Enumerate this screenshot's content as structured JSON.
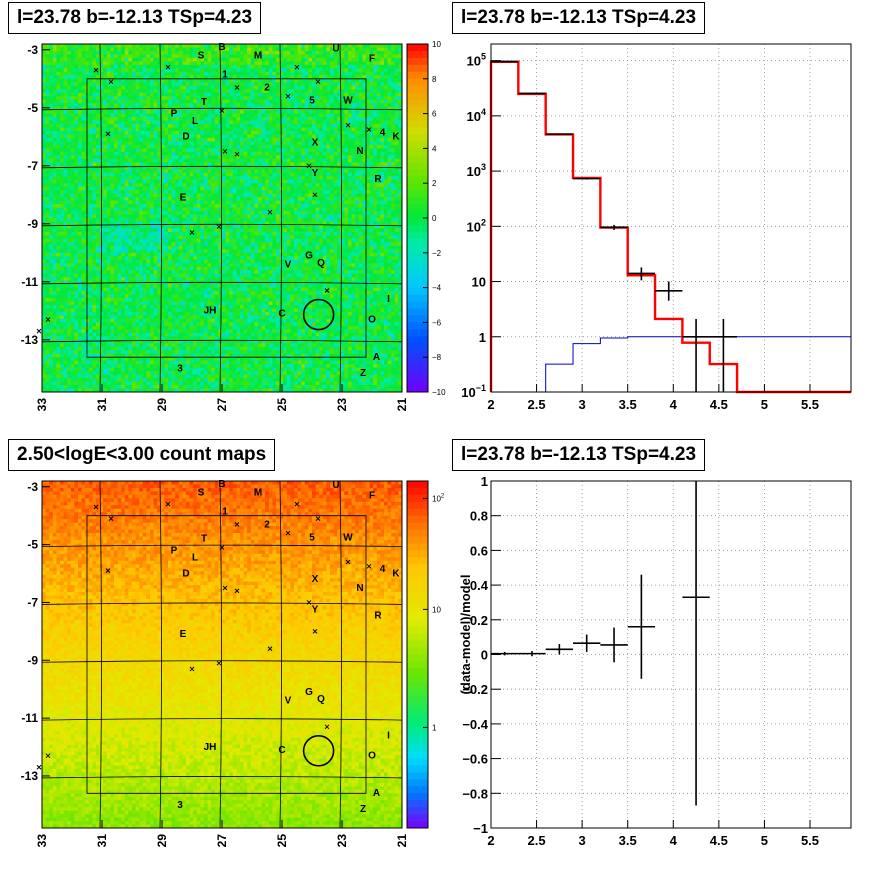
{
  "panels": {
    "top_left_title": "l=23.78 b=-12.13 TSp=4.23",
    "top_right_title": "l=23.78 b=-12.13 TSp=4.23",
    "bottom_left_title": "2.50<logE<3.00 count maps",
    "bottom_right_title": "l=23.78 b=-12.13 TSp=4.23"
  },
  "chart_data": [
    {
      "type": "heatmap",
      "id": "residual-map",
      "title": "l=23.78 b=-12.13 TSp=4.23",
      "x_ticks": [
        "33",
        "31",
        "29",
        "27",
        "25",
        "23",
        "21"
      ],
      "y_ticks": [
        "-3",
        "-5",
        "-7",
        "-9",
        "-11",
        "-13"
      ],
      "xlim": [
        33,
        21
      ],
      "ylim": [
        -14.8,
        -2.8
      ],
      "colorbar": {
        "ticks": [
          "10",
          "8",
          "6",
          "4",
          "2",
          "0",
          "−2",
          "−4",
          "−6",
          "−8",
          "−10"
        ],
        "range": [
          -10,
          10
        ],
        "scale": "linear"
      },
      "circle": {
        "l": 23.78,
        "b": -12.13,
        "radius_deg": 0.5
      },
      "grid": true
    },
    {
      "type": "line",
      "id": "spectrum",
      "title": "l=23.78 b=-12.13 TSp=4.23",
      "y_scale": "log",
      "xlim": [
        2,
        5.95
      ],
      "ylim": [
        0.1,
        200000
      ],
      "x_ticks": [
        "2",
        "2.5",
        "3",
        "3.5",
        "4",
        "4.5",
        "5",
        "5.5"
      ],
      "y_ticks": [
        "10^5",
        "10^4",
        "10^3",
        "10^2",
        "10",
        "1",
        "10^-1"
      ],
      "grid": true,
      "model_total": {
        "color": "#ff0000",
        "edges": [
          2.0,
          2.3,
          2.6,
          2.9,
          3.2,
          3.5,
          3.8,
          4.1,
          4.4,
          4.7,
          5.95
        ],
        "values": [
          95000,
          25000,
          4600,
          750,
          95,
          13,
          2.1,
          0.78,
          0.32,
          0.1
        ]
      },
      "source_model": {
        "color": "#0000cc",
        "edges": [
          2.6,
          2.9,
          3.2,
          3.5,
          5.95
        ],
        "values": [
          0.32,
          0.75,
          0.95,
          1.0
        ]
      },
      "data_points": [
        {
          "x": 2.15,
          "xerr": 0.15,
          "y": 96000,
          "ylo": 95000,
          "yhi": 97000
        },
        {
          "x": 2.45,
          "xerr": 0.15,
          "y": 25500,
          "ylo": 25000,
          "yhi": 26000
        },
        {
          "x": 2.75,
          "xerr": 0.15,
          "y": 4650,
          "ylo": 4500,
          "yhi": 4800
        },
        {
          "x": 3.05,
          "xerr": 0.15,
          "y": 730,
          "ylo": 700,
          "yhi": 760
        },
        {
          "x": 3.35,
          "xerr": 0.15,
          "y": 96,
          "ylo": 86,
          "yhi": 106
        },
        {
          "x": 3.65,
          "xerr": 0.15,
          "y": 14,
          "ylo": 10.5,
          "yhi": 18
        },
        {
          "x": 3.95,
          "xerr": 0.15,
          "y": 6.8,
          "ylo": 4.5,
          "yhi": 10
        },
        {
          "x": 4.25,
          "xerr": 0.15,
          "y": 1,
          "ylo": 0.1,
          "yhi": 2.1
        },
        {
          "x": 4.55,
          "xerr": 0.15,
          "y": 1,
          "ylo": 0.1,
          "yhi": 2.1
        }
      ]
    },
    {
      "type": "heatmap",
      "id": "count-map",
      "title": "2.50<logE<3.00 count maps",
      "x_ticks": [
        "33",
        "31",
        "29",
        "27",
        "25",
        "23",
        "21"
      ],
      "y_ticks": [
        "-3",
        "-5",
        "-7",
        "-9",
        "-11",
        "-13"
      ],
      "xlim": [
        33,
        21
      ],
      "ylim": [
        -14.8,
        -2.8
      ],
      "colorbar": {
        "ticks": [
          "10^2",
          "10",
          "1"
        ],
        "scale": "log"
      },
      "circle": {
        "l": 23.78,
        "b": -12.13,
        "radius_deg": 0.5
      },
      "grid": true
    },
    {
      "type": "scatter",
      "id": "residuals",
      "title": "l=23.78 b=-12.13 TSp=4.23",
      "ylabel": "(data-model)/model",
      "xlim": [
        2,
        5.95
      ],
      "ylim": [
        -1,
        1
      ],
      "x_ticks": [
        "2",
        "2.5",
        "3",
        "3.5",
        "4",
        "4.5",
        "5",
        "5.5"
      ],
      "y_ticks": [
        "1",
        "0.8",
        "0.6",
        "0.4",
        "0.2",
        "0",
        "−0.2",
        "−0.4",
        "−0.6",
        "−0.8",
        "−1"
      ],
      "grid": true,
      "data_points": [
        {
          "x": 2.15,
          "xerr": 0.15,
          "y": 0.005,
          "yerr": 0.01
        },
        {
          "x": 2.45,
          "xerr": 0.15,
          "y": 0.005,
          "yerr": 0.015
        },
        {
          "x": 2.75,
          "xerr": 0.15,
          "y": 0.03,
          "yerr": 0.03
        },
        {
          "x": 3.05,
          "xerr": 0.15,
          "y": 0.065,
          "yerr": 0.05
        },
        {
          "x": 3.35,
          "xerr": 0.15,
          "y": 0.055,
          "yerr": 0.1
        },
        {
          "x": 3.65,
          "xerr": 0.15,
          "y": 0.16,
          "yerr": 0.3
        },
        {
          "x": 4.25,
          "xerr": 0.15,
          "y": 0.33,
          "yerr": 1.2
        }
      ]
    }
  ],
  "map_labels": [
    {
      "t": "B",
      "l": 27.0,
      "b": -3.0
    },
    {
      "t": "S",
      "l": 27.7,
      "b": -3.3
    },
    {
      "t": "M",
      "l": 25.8,
      "b": -3.3
    },
    {
      "t": "U",
      "l": 23.2,
      "b": -3.05
    },
    {
      "t": "F",
      "l": 22.0,
      "b": -3.4
    },
    {
      "t": "1",
      "l": 26.9,
      "b": -3.95
    },
    {
      "t": "2",
      "l": 25.5,
      "b": -4.4
    },
    {
      "t": "T",
      "l": 27.6,
      "b": -4.9
    },
    {
      "t": "5",
      "l": 24.0,
      "b": -4.85
    },
    {
      "t": "W",
      "l": 22.8,
      "b": -4.85
    },
    {
      "t": "P",
      "l": 28.6,
      "b": -5.3
    },
    {
      "t": "L",
      "l": 27.9,
      "b": -5.55
    },
    {
      "t": "D",
      "l": 28.2,
      "b": -6.1
    },
    {
      "t": "4",
      "l": 21.65,
      "b": -5.95
    },
    {
      "t": "K",
      "l": 21.2,
      "b": -6.1
    },
    {
      "t": "X",
      "l": 23.9,
      "b": -6.3
    },
    {
      "t": "N",
      "l": 22.4,
      "b": -6.6
    },
    {
      "t": "Y",
      "l": 23.9,
      "b": -7.35
    },
    {
      "t": "R",
      "l": 21.8,
      "b": -7.55
    },
    {
      "t": "E",
      "l": 28.3,
      "b": -8.2
    },
    {
      "t": "G",
      "l": 24.1,
      "b": -10.2
    },
    {
      "t": "V",
      "l": 24.8,
      "b": -10.5
    },
    {
      "t": "Q",
      "l": 23.7,
      "b": -10.45
    },
    {
      "t": "I",
      "l": 21.45,
      "b": -11.7
    },
    {
      "t": "JH",
      "l": 27.4,
      "b": -12.1
    },
    {
      "t": "C",
      "l": 25.0,
      "b": -12.2
    },
    {
      "t": "O",
      "l": 22.0,
      "b": -12.4
    },
    {
      "t": "3",
      "l": 28.4,
      "b": -14.1
    },
    {
      "t": "A",
      "l": 21.85,
      "b": -13.7
    },
    {
      "t": "Z",
      "l": 22.3,
      "b": -14.25
    }
  ],
  "map_crosses": [
    {
      "l": 31.2,
      "b": -3.7
    },
    {
      "l": 28.8,
      "b": -3.6
    },
    {
      "l": 24.5,
      "b": -3.6
    },
    {
      "l": 30.7,
      "b": -4.1
    },
    {
      "l": 26.5,
      "b": -4.3
    },
    {
      "l": 23.8,
      "b": -4.1
    },
    {
      "l": 24.8,
      "b": -4.6
    },
    {
      "l": 27.0,
      "b": -5.1
    },
    {
      "l": 22.1,
      "b": -5.75
    },
    {
      "l": 30.8,
      "b": -5.9
    },
    {
      "l": 22.8,
      "b": -5.6
    },
    {
      "l": 26.9,
      "b": -6.5
    },
    {
      "l": 26.5,
      "b": -6.6
    },
    {
      "l": 24.1,
      "b": -7.0
    },
    {
      "l": 23.9,
      "b": -8.0
    },
    {
      "l": 25.4,
      "b": -8.6
    },
    {
      "l": 28.0,
      "b": -9.3
    },
    {
      "l": 27.1,
      "b": -9.1
    },
    {
      "l": 23.5,
      "b": -11.3
    },
    {
      "l": 32.8,
      "b": -12.3
    },
    {
      "l": 33.1,
      "b": -12.7
    }
  ]
}
